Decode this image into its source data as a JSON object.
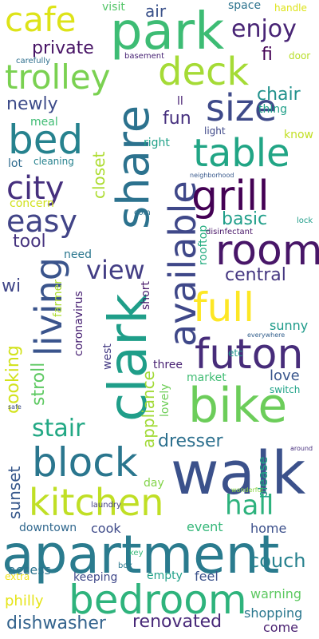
{
  "words": [
    {
      "text": "apartment",
      "color": "#2a7b8e"
    },
    {
      "text": "walk",
      "color": "#3b518b"
    },
    {
      "text": "clark",
      "color": "#1f9e89"
    },
    {
      "text": "park",
      "color": "#3dbc74"
    },
    {
      "text": "bike",
      "color": "#6ccd5a"
    },
    {
      "text": "share",
      "color": "#2c728e"
    },
    {
      "text": "available",
      "color": "#3f4889"
    },
    {
      "text": "bedroom",
      "color": "#2eb37c"
    },
    {
      "text": "futon",
      "color": "#472c7a"
    },
    {
      "text": "room",
      "color": "#481668"
    },
    {
      "text": "block",
      "color": "#2a768e"
    },
    {
      "text": "living",
      "color": "#3a548c"
    },
    {
      "text": "kitchen",
      "color": "#c0df25"
    },
    {
      "text": "full",
      "color": "#fde725"
    },
    {
      "text": "grill",
      "color": "#440154"
    },
    {
      "text": "bed",
      "color": "#26828e"
    },
    {
      "text": "table",
      "color": "#21a585"
    },
    {
      "text": "size",
      "color": "#3e4a89"
    },
    {
      "text": "deck",
      "color": "#a5db36"
    },
    {
      "text": "cafe",
      "color": "#dde318"
    },
    {
      "text": "trolley",
      "color": "#7ad151"
    },
    {
      "text": "city",
      "color": "#46307e"
    },
    {
      "text": "easy",
      "color": "#414487"
    },
    {
      "text": "hall",
      "color": "#2db27d"
    },
    {
      "text": "enjoy",
      "color": "#482475"
    },
    {
      "text": "view",
      "color": "#433e85"
    },
    {
      "text": "stair",
      "color": "#22a884"
    },
    {
      "text": "couch",
      "color": "#26818e"
    },
    {
      "text": "dishwasher",
      "color": "#33638d"
    },
    {
      "text": "renovated",
      "color": "#482878"
    },
    {
      "text": "dresser",
      "color": "#2d708e"
    },
    {
      "text": "private",
      "color": "#471365"
    },
    {
      "text": "newly",
      "color": "#3e4c8a"
    },
    {
      "text": "chair",
      "color": "#21918c"
    },
    {
      "text": "tool",
      "color": "#46337f"
    },
    {
      "text": "basic",
      "color": "#1f9e89"
    },
    {
      "text": "central",
      "color": "#453781"
    },
    {
      "text": "cooking",
      "color": "#d2e21b"
    },
    {
      "text": "stroll",
      "color": "#5ec962"
    },
    {
      "text": "closet",
      "color": "#addc30"
    },
    {
      "text": "appliance",
      "color": "#a2da37"
    },
    {
      "text": "sunset",
      "color": "#38598c"
    },
    {
      "text": "fun",
      "color": "#46307e"
    },
    {
      "text": "air",
      "color": "#3b528b"
    },
    {
      "text": "fi",
      "color": "#440154"
    },
    {
      "text": "wi",
      "color": "#404688"
    },
    {
      "text": "sunny",
      "color": "#1e9b8a"
    },
    {
      "text": "love",
      "color": "#39568c"
    },
    {
      "text": "please",
      "color": "#20a386"
    },
    {
      "text": "downtown",
      "color": "#31688e"
    },
    {
      "text": "cook",
      "color": "#3e4a89"
    },
    {
      "text": "event",
      "color": "#35b779"
    },
    {
      "text": "home",
      "color": "#3c508b"
    },
    {
      "text": "access",
      "color": "#2c738e"
    },
    {
      "text": "philly",
      "color": "#e5e419"
    },
    {
      "text": "warning",
      "color": "#5ec962"
    },
    {
      "text": "shopping",
      "color": "#2a778e"
    },
    {
      "text": "come",
      "color": "#481f70"
    },
    {
      "text": "feel",
      "color": "#3b528b"
    },
    {
      "text": "empty",
      "color": "#1fa088"
    },
    {
      "text": "keeping",
      "color": "#3f4889"
    },
    {
      "text": "extra",
      "color": "#f1e51d"
    },
    {
      "text": "market",
      "color": "#3fbc73"
    },
    {
      "text": "three",
      "color": "#482173"
    },
    {
      "text": "lovely",
      "color": "#6ece58"
    },
    {
      "text": "west",
      "color": "#443a83"
    },
    {
      "text": "coronavirus",
      "color": "#482173"
    },
    {
      "text": "short",
      "color": "#48186a"
    },
    {
      "text": "rooftop",
      "color": "#26ad81"
    },
    {
      "text": "farmer",
      "color": "#addc30"
    },
    {
      "text": "need",
      "color": "#2a768e"
    },
    {
      "text": "concern",
      "color": "#d0e11c"
    },
    {
      "text": "lot",
      "color": "#2f6b8e"
    },
    {
      "text": "cleaning",
      "color": "#26828e"
    },
    {
      "text": "meal",
      "color": "#3fbc73"
    },
    {
      "text": "right",
      "color": "#1fa188"
    },
    {
      "text": "know",
      "color": "#c2df23"
    },
    {
      "text": "thing",
      "color": "#1f9f88"
    },
    {
      "text": "space",
      "color": "#2c738e"
    },
    {
      "text": "visit",
      "color": "#54c568"
    },
    {
      "text": "handle",
      "color": "#dde318"
    },
    {
      "text": "door",
      "color": "#b8de29"
    },
    {
      "text": "basement",
      "color": "#482475"
    },
    {
      "text": "carefully",
      "color": "#2e6f8e"
    },
    {
      "text": "ll",
      "color": "#482173"
    },
    {
      "text": "light",
      "color": "#3f4889"
    },
    {
      "text": "neighborhood",
      "color": "#38598c"
    },
    {
      "text": "coin",
      "color": "#2c718e"
    },
    {
      "text": "lock",
      "color": "#1e9c89"
    },
    {
      "text": "disinfectant",
      "color": "#481668"
    },
    {
      "text": "etc",
      "color": "#1f958b"
    },
    {
      "text": "everywhere",
      "color": "#34608d"
    },
    {
      "text": "switch",
      "color": "#1fa287"
    },
    {
      "text": "safe",
      "color": "#3e4c8a"
    },
    {
      "text": "around",
      "color": "#472f7d"
    },
    {
      "text": "day",
      "color": "#84d44b"
    },
    {
      "text": "laundry",
      "color": "#433e85"
    },
    {
      "text": "wonderful",
      "color": "#8bd646"
    },
    {
      "text": "box",
      "color": "#2a788e"
    },
    {
      "text": "key",
      "color": "#35b779"
    }
  ]
}
